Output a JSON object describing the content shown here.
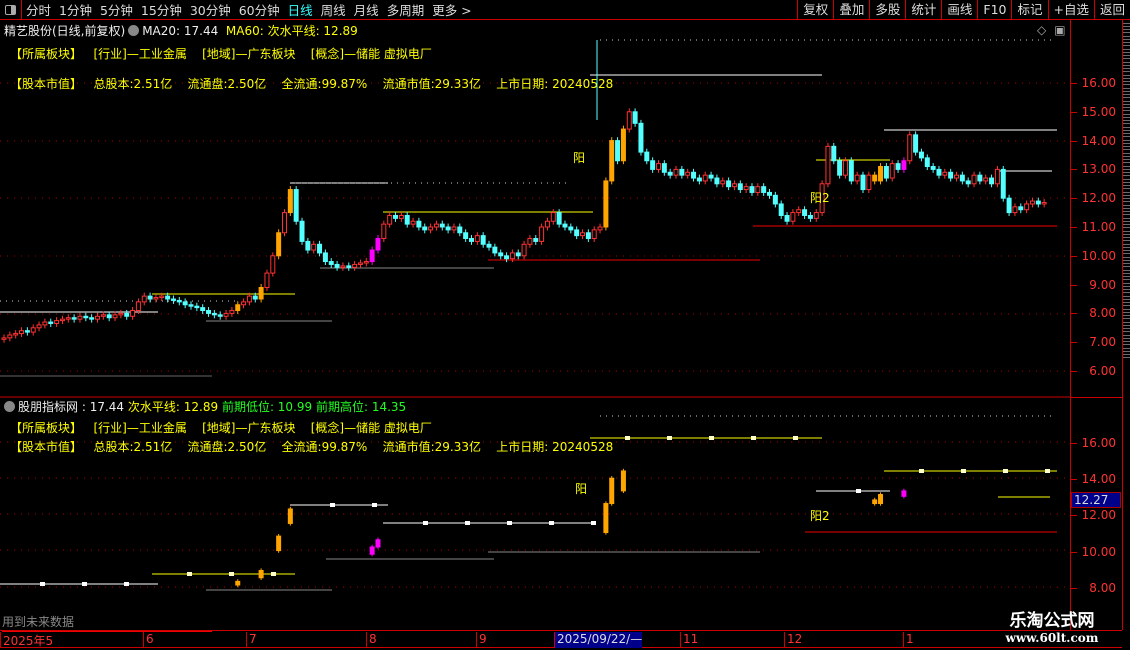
{
  "toolbar": {
    "periods": [
      "分时",
      "1分钟",
      "5分钟",
      "15分钟",
      "30分钟",
      "60分钟",
      "日线",
      "周线",
      "月线",
      "多周期",
      "更多 >"
    ],
    "active": "日线",
    "buttons": [
      "复权",
      "叠加",
      "多股",
      "统计",
      "画线",
      "F10",
      "标记",
      "+自选",
      "返回"
    ]
  },
  "main": {
    "title": "精艺股份(日线,前复权)",
    "ma20": "MA20: 17.44",
    "ma60": "MA60: 次水平线: 12.89",
    "sector_label": "【所属板块】",
    "industry": "[行业]—工业金属",
    "region": "[地域]—广东板块",
    "concept": "[概念]—储能 虚拟电厂",
    "capital_label": "【股本市值】",
    "total_shares": "总股本:2.51亿",
    "float_shares": "流通盘:2.50亿",
    "float_ratio": "全流通:99.87%",
    "float_value": "流通市值:29.33亿",
    "listing_date": "上市日期: 20240528",
    "signal_yang": "阳",
    "signal_yang2": "阳2",
    "axis": [
      "16.00",
      "15.00",
      "14.00",
      "13.00",
      "12.00",
      "11.00",
      "10.00",
      "9.00",
      "8.00",
      "7.00",
      "6.00"
    ]
  },
  "indicator": {
    "name": "股朋指标网",
    "value": ": 17.44",
    "level": "次水平线: 12.89",
    "prev_low": "前期低位: 10.99",
    "prev_high": "前期高位: 14.35",
    "axis": [
      "16.00",
      "14.00",
      "12.00",
      "10.00",
      "8.00"
    ],
    "price_tag": "12.27",
    "future_note": "用到未来数据"
  },
  "dates": [
    "2025年5",
    "6",
    "7",
    "8",
    "9",
    "2025/09/22/—",
    "11",
    "12",
    "1"
  ],
  "watermark": {
    "name": "乐淘公式网",
    "url": "www.60lt.com"
  },
  "colors": {
    "up": "#ff3232",
    "down": "#54ffff",
    "signal": "#ffa500",
    "breakout": "#ff00ff",
    "level": "#ffff00"
  },
  "chart_data": {
    "type": "candlestick",
    "period": "daily",
    "ylim": [
      5.5,
      17.5
    ],
    "closes": [
      7.15,
      7.25,
      7.3,
      7.4,
      7.35,
      7.5,
      7.6,
      7.7,
      7.65,
      7.75,
      7.8,
      7.85,
      7.8,
      7.9,
      7.85,
      7.8,
      7.9,
      7.95,
      7.85,
      7.95,
      8.0,
      7.9,
      8.1,
      8.4,
      8.6,
      8.5,
      8.55,
      8.6,
      8.5,
      8.45,
      8.4,
      8.3,
      8.25,
      8.2,
      8.1,
      8.0,
      7.95,
      7.9,
      8.0,
      8.1,
      8.3,
      8.4,
      8.6,
      8.5,
      8.9,
      9.4,
      10.0,
      10.8,
      11.5,
      12.3,
      11.2,
      10.5,
      10.2,
      10.4,
      10.1,
      9.8,
      9.7,
      9.6,
      9.65,
      9.6,
      9.7,
      9.75,
      9.8,
      10.2,
      10.6,
      11.1,
      11.4,
      11.3,
      11.4,
      11.1,
      11.2,
      11.0,
      10.9,
      11.0,
      11.1,
      11.0,
      10.9,
      11.0,
      10.8,
      10.6,
      10.5,
      10.7,
      10.4,
      10.3,
      10.1,
      10.0,
      9.9,
      10.1,
      10.0,
      10.4,
      10.6,
      10.5,
      11.0,
      11.2,
      11.5,
      11.1,
      11.0,
      10.9,
      10.7,
      10.8,
      10.6,
      10.9,
      11.0,
      12.6,
      14.0,
      13.3,
      14.4,
      15.0,
      14.6,
      13.6,
      13.3,
      13.0,
      13.2,
      12.9,
      12.8,
      13.0,
      12.8,
      12.9,
      12.7,
      12.6,
      12.8,
      12.7,
      12.5,
      12.6,
      12.4,
      12.5,
      12.3,
      12.4,
      12.2,
      12.4,
      12.2,
      12.1,
      11.8,
      11.4,
      11.2,
      11.5,
      11.6,
      11.4,
      11.3,
      11.5,
      12.5,
      13.8,
      13.3,
      12.8,
      13.3,
      12.6,
      12.8,
      12.3,
      12.8,
      12.6,
      13.1,
      12.7,
      13.2,
      13.0,
      13.3,
      14.2,
      13.6,
      13.4,
      13.1,
      13.0,
      12.8,
      12.9,
      12.7,
      12.8,
      12.6,
      12.5,
      12.8,
      12.6,
      12.7,
      12.5,
      13.0,
      12.0,
      11.5,
      11.7,
      11.6,
      11.8,
      11.9,
      11.8,
      11.85
    ],
    "signal_candles": [
      40,
      44,
      47,
      49,
      103,
      104,
      106,
      149,
      150
    ],
    "breakout_candles": [
      63,
      64,
      154
    ],
    "levels": {
      "ma20": 17.44,
      "secondary_level": 12.89,
      "prev_low": 10.99,
      "prev_high": 14.35,
      "last_price": 12.27
    }
  }
}
